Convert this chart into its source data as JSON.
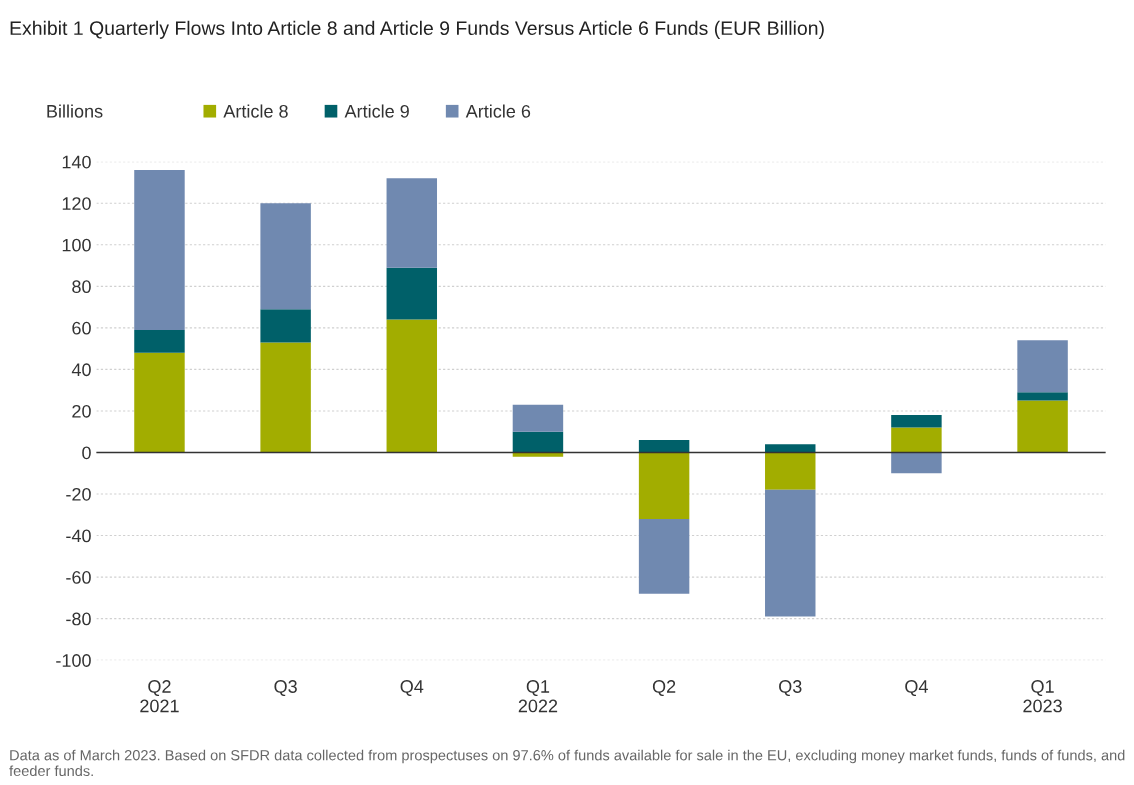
{
  "chart_data": {
    "type": "bar",
    "stacked": true,
    "title": "Exhibit 1 Quarterly Flows Into Article 8 and Article 9 Funds Versus Article 6 Funds (EUR Billion)",
    "ylabel": "Billions",
    "categories": [
      "Q2\n2021",
      "Q3",
      "Q4",
      "Q1\n2022",
      "Q2",
      "Q3",
      "Q4",
      "Q1\n2023"
    ],
    "series": [
      {
        "name": "Article 8",
        "color": "#a2ad00",
        "values": [
          48,
          53,
          64,
          -2,
          -32,
          -18,
          12,
          25
        ]
      },
      {
        "name": "Article 9",
        "color": "#006069",
        "values": [
          11,
          16,
          25,
          10,
          6,
          4,
          6,
          4
        ]
      },
      {
        "name": "Article 6",
        "color": "#7089b0",
        "values": [
          77,
          51,
          43,
          13,
          -36,
          -61,
          -10,
          25
        ]
      }
    ],
    "ylim": [
      -100,
      140
    ],
    "ref_lines": [
      {
        "axis": "y",
        "value": 0,
        "color": "#333333"
      }
    ],
    "yticks": [
      -100,
      -80,
      -60,
      -40,
      -20,
      0,
      20,
      40,
      60,
      80,
      100,
      120,
      140
    ],
    "grid": "y",
    "legend": "top left",
    "annotations": [
      "Data as of March 2023. Based on SFDR data collected from prospectuses on 97.6% of funds available for sale in the EU, excluding money market funds, funds of funds, and feeder funds."
    ]
  }
}
